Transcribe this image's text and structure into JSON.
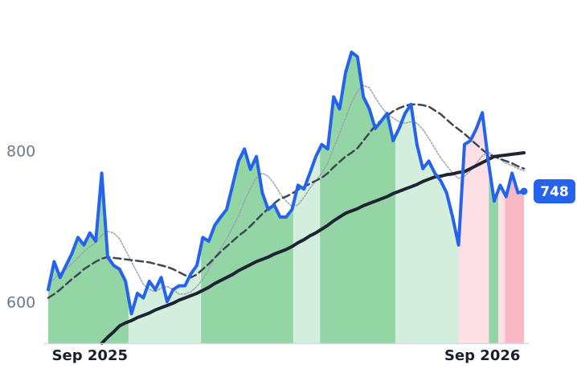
{
  "chart_data": {
    "type": "line",
    "categories": [
      null,
      null,
      null,
      null,
      null,
      null,
      null,
      "Sep 2025",
      null,
      null,
      null,
      null,
      null,
      null,
      null,
      null,
      null,
      null,
      null,
      null,
      null,
      null,
      null,
      null,
      null,
      null,
      null,
      null,
      null,
      null,
      null,
      null,
      null,
      null,
      null,
      null,
      null,
      null,
      null,
      null,
      null,
      null,
      null,
      null,
      null,
      null,
      null,
      null,
      null,
      null,
      null,
      null,
      null,
      null,
      null,
      null,
      null,
      null,
      null,
      null,
      null,
      null,
      null,
      null,
      null,
      null,
      null,
      null,
      null,
      null,
      null,
      null,
      null,
      "Sep 2026",
      null,
      null,
      null,
      null,
      null,
      null,
      null
    ],
    "series": [
      {
        "color": "#9aa3b2",
        "style": "dotted",
        "width": 1.5,
        "values": [
          625,
          632,
          640,
          645,
          652,
          660,
          668,
          675,
          680,
          690,
          695,
          693,
          685,
          670,
          655,
          640,
          625,
          618,
          615,
          620,
          622,
          618,
          612,
          612,
          615,
          622,
          632,
          645,
          660,
          672,
          685,
          700,
          715,
          735,
          752,
          766,
          772,
          768,
          758,
          745,
          735,
          728,
          730,
          740,
          752,
          762,
          772,
          785,
          805,
          825,
          845,
          865,
          880,
          888,
          885,
          872,
          860,
          850,
          845,
          840,
          838,
          840,
          838,
          830,
          818,
          805,
          792,
          782,
          772,
          765,
          768,
          775,
          785,
          795,
          800,
          795,
          790,
          785,
          782,
          778,
          775
        ]
      },
      {
        "color": "#3f4756",
        "style": "dashed",
        "width": 2.5,
        "values": [
          607,
          612,
          618,
          625,
          632,
          638,
          645,
          650,
          655,
          659,
          661,
          660,
          659,
          658,
          657,
          656,
          655,
          654,
          652,
          650,
          648,
          645,
          641,
          637,
          634,
          638,
          645,
          652,
          660,
          668,
          675,
          682,
          689,
          695,
          702,
          710,
          718,
          725,
          732,
          738,
          741,
          745,
          750,
          754,
          758,
          762,
          766,
          772,
          780,
          787,
          794,
          799,
          805,
          815,
          825,
          835,
          842,
          848,
          854,
          858,
          861,
          863,
          863,
          862,
          860,
          855,
          850,
          843,
          836,
          830,
          824,
          817,
          810,
          803,
          797,
          794,
          791,
          788,
          785,
          781,
          778
        ]
      },
      {
        "color": "#1e2433",
        "style": "solid",
        "width": 4,
        "values": [
          null,
          null,
          null,
          null,
          null,
          null,
          null,
          null,
          null,
          547,
          555,
          562,
          570,
          574,
          577,
          581,
          584,
          587,
          591,
          594,
          597,
          600,
          604,
          607,
          610,
          613,
          617,
          621,
          626,
          630,
          634,
          638,
          643,
          647,
          651,
          655,
          658,
          661,
          665,
          668,
          671,
          675,
          680,
          684,
          689,
          693,
          698,
          703,
          709,
          714,
          719,
          722,
          725,
          729,
          732,
          735,
          738,
          741,
          745,
          748,
          751,
          754,
          757,
          761,
          764,
          767,
          768,
          770,
          771,
          773,
          774,
          778,
          782,
          786,
          790,
          794,
          795,
          796,
          797,
          798,
          799
        ]
      },
      {
        "color": "#2563eb",
        "style": "solid",
        "width": 4,
        "values": [
          618,
          655,
          634,
          650,
          666,
          687,
          677,
          693,
          682,
          772,
          661,
          650,
          645,
          629,
          586,
          613,
          607,
          629,
          618,
          634,
          602,
          618,
          623,
          623,
          639,
          650,
          687,
          682,
          703,
          714,
          724,
          756,
          788,
          804,
          777,
          794,
          746,
          724,
          730,
          714,
          714,
          724,
          756,
          751,
          772,
          794,
          810,
          804,
          873,
          857,
          905,
          932,
          926,
          873,
          857,
          831,
          841,
          851,
          815,
          831,
          851,
          863,
          810,
          778,
          788,
          772,
          762,
          746,
          714,
          677,
          810,
          815,
          831,
          852,
          788,
          735,
          756,
          741,
          772,
          746,
          748
        ]
      }
    ],
    "zones": [
      {
        "from": 0,
        "to": 13.5,
        "color": "#93d5a4"
      },
      {
        "from": 13.5,
        "to": 25.7,
        "color": "#d3eedc"
      },
      {
        "from": 25.7,
        "to": 41.2,
        "color": "#93d5a4"
      },
      {
        "from": 41.2,
        "to": 45.7,
        "color": "#d3eedc"
      },
      {
        "from": 45.7,
        "to": 58.4,
        "color": "#93d5a4"
      },
      {
        "from": 58.4,
        "to": 69,
        "color": "#d3eedc"
      },
      {
        "from": 69,
        "to": 74.1,
        "color": "#fde0e5"
      },
      {
        "from": 74.1,
        "to": 75.7,
        "color": "#93d5a4"
      },
      {
        "from": 75.7,
        "to": 76.8,
        "color": "#fde0e5"
      },
      {
        "from": 76.8,
        "to": 80,
        "color": "#f9b8c4"
      }
    ],
    "last_value": 748,
    "ylim": [
      547,
      1000
    ],
    "yticks": [
      600,
      800
    ]
  }
}
